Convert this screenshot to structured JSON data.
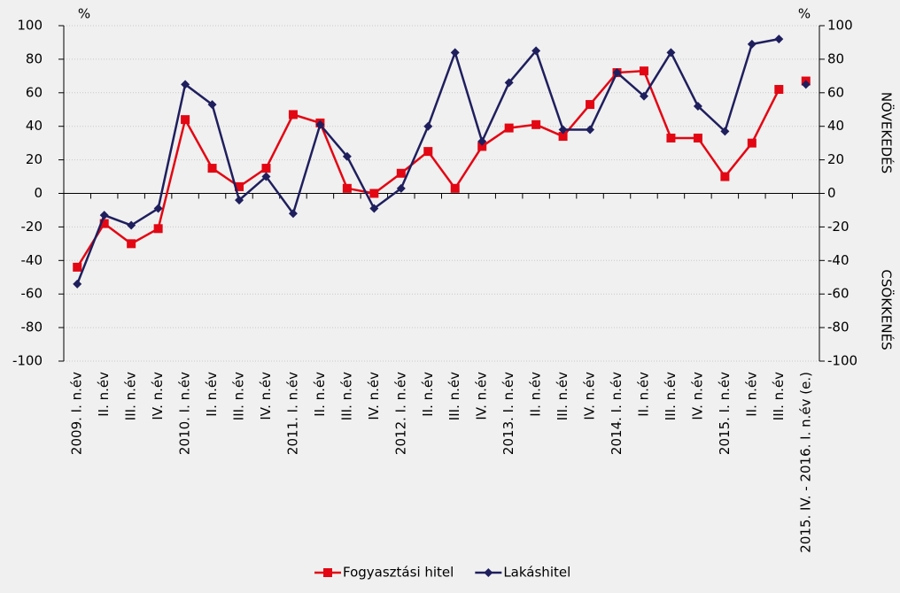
{
  "chart_data": {
    "type": "line",
    "categories": [
      "2009. I. n.év",
      "II. n.év",
      "III. n.év",
      "IV. n.év",
      "2010. I. n.év",
      "II. n.év",
      "III. n.év",
      "IV. n.év",
      "2011. I. n.év",
      "II. n.év",
      "III. n.év",
      "IV. n.év",
      "2012. I. n.év",
      "II. n.év",
      "III. n.év",
      "IV. n.év",
      "2013. I. n.év",
      "II. n.év",
      "III. n.év",
      "IV. n.év",
      "2014. I. n.év",
      "II. n.év",
      "III. n.év",
      "IV. n.év",
      "2015. I. n.év",
      "II. n.év",
      "III. n.év",
      "2015. IV. - 2016. I. n.év (e.)"
    ],
    "series": [
      {
        "name": "Fogyasztási hitel",
        "color": "#e30613",
        "marker": "square",
        "values": [
          -44,
          -18,
          -30,
          -21,
          44,
          15,
          4,
          15,
          47,
          42,
          3,
          0,
          12,
          25,
          3,
          28,
          39,
          41,
          34,
          53,
          72,
          73,
          33,
          33,
          10,
          30,
          62,
          67
        ]
      },
      {
        "name": "Lakáshitel",
        "color": "#1f1f5e",
        "marker": "diamond",
        "values": [
          -54,
          -13,
          -19,
          -9,
          65,
          53,
          -4,
          10,
          -12,
          41,
          22,
          -9,
          3,
          40,
          84,
          31,
          66,
          85,
          38,
          38,
          72,
          58,
          84,
          52,
          37,
          89,
          92,
          65
        ]
      }
    ],
    "ylabel": "%",
    "y2label": "%",
    "y2_upper_label": "NÖVEKEDÉS",
    "y2_lower_label": "CSÖKKENÉS",
    "ylim": [
      -100,
      100
    ],
    "yticks": [
      -100,
      -80,
      -60,
      -40,
      -20,
      0,
      20,
      40,
      60,
      80,
      100
    ],
    "y2lim": [
      -100,
      100
    ],
    "y2ticks": [
      -100,
      -80,
      -60,
      -40,
      -20,
      0,
      20,
      40,
      60,
      80,
      100
    ],
    "grid": true
  }
}
